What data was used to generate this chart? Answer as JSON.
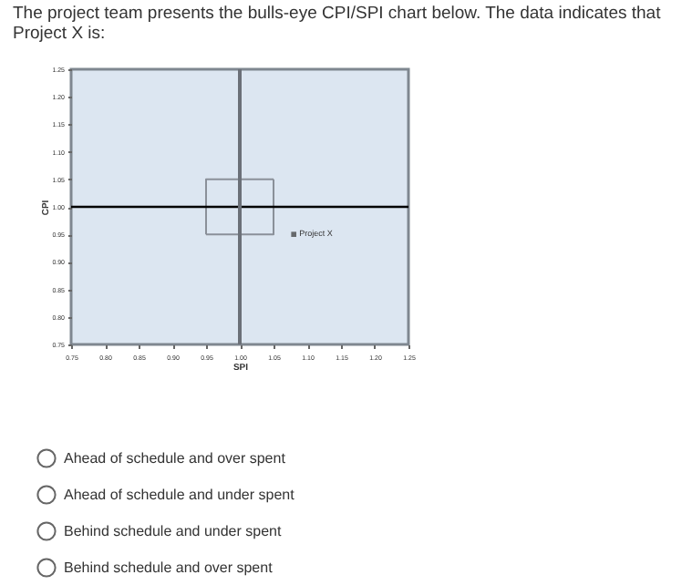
{
  "chart_data": {
    "type": "scatter",
    "title": "The project team presents the bulls-eye CPI/SPI chart below. The data indicates that Project X is:",
    "xlabel": "SPI",
    "ylabel": "CPI",
    "xlim": [
      0.75,
      1.25
    ],
    "xticks": [
      {
        "value": 0.75,
        "label": "0.75"
      },
      {
        "value": 0.8,
        "label": "0.80"
      },
      {
        "value": 0.85,
        "label": "0.85"
      },
      {
        "value": 0.9,
        "label": "0.90"
      },
      {
        "value": 0.95,
        "label": "0.95"
      },
      {
        "value": 1.0,
        "label": "1.00"
      },
      {
        "value": 1.05,
        "label": "1.05"
      },
      {
        "value": 1.1,
        "label": "1.10"
      },
      {
        "value": 1.15,
        "label": "1.15"
      },
      {
        "value": 1.2,
        "label": "1.20"
      },
      {
        "value": 1.25,
        "label": "1.25"
      }
    ],
    "ylim": [
      0.75,
      1.25
    ],
    "yticks": [
      {
        "value": 0.75,
        "label": "0.75"
      },
      {
        "value": 0.8,
        "label": "0.80"
      },
      {
        "value": 0.85,
        "label": "0.85"
      },
      {
        "value": 0.9,
        "label": "0.90"
      },
      {
        "value": 0.95,
        "label": "0.95"
      },
      {
        "value": 1.0,
        "label": "1.00"
      },
      {
        "value": 1.05,
        "label": "1.05"
      },
      {
        "value": 1.1,
        "label": "1.10"
      },
      {
        "value": 1.15,
        "label": "1.15"
      },
      {
        "value": 1.2,
        "label": "1.20"
      },
      {
        "value": 1.25,
        "label": "1.25"
      }
    ],
    "grid": false,
    "series": [
      {
        "name": "Project X",
        "marker": "square",
        "x": [
          1.08
        ],
        "values": [
          0.95
        ],
        "color": "#333333"
      },
      {
        "type": "line",
        "x": [
          0.95,
          1.05,
          1.05
        ],
        "values": [
          0.95,
          0.95,
          1.05
        ],
        "color": "#8a9099"
      },
      {
        "type": "line",
        "x": [
          1.05,
          0.95,
          0.95
        ],
        "values": [
          1.05,
          1.05,
          0.95
        ],
        "color": "#8a9099"
      }
    ],
    "ref_lines": [
      {
        "axis": "y",
        "value": 1.0,
        "color": "#000000"
      },
      {
        "axis": "x",
        "value": 1.0,
        "color": "#6b7078"
      }
    ],
    "annotations": [
      "Ahead of schedule and over spent",
      "Ahead of schedule and under spent",
      "Behind schedule and under spent",
      "Behind schedule and over spent"
    ]
  }
}
